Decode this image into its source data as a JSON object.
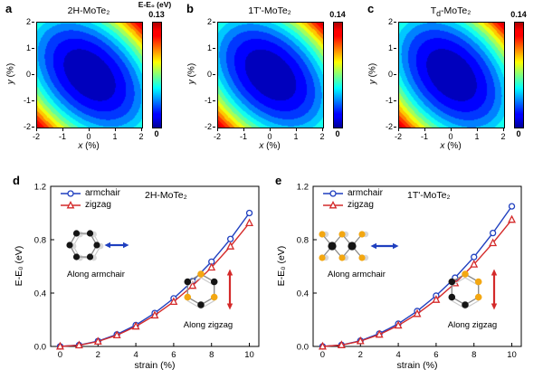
{
  "figure": {
    "background": "#ffffff",
    "accent_blue": "#1f3fbf",
    "accent_red": "#d42a2a",
    "atom_orange": "#f3a712"
  },
  "panels": {
    "a": {
      "label": "a",
      "title": "2H-MoTe₂",
      "colorbar_title": "E-E₀ (eV)",
      "colorbar_max": "0.13",
      "colorbar_min": "0",
      "xlabel_var": "x",
      "xlabel_unit": " (%)",
      "ylabel_var": "y",
      "ylabel_unit": " (%)"
    },
    "b": {
      "label": "b",
      "title": "1T'-MoTe₂",
      "colorbar_max": "0.14",
      "colorbar_min": "0",
      "xlabel_var": "x",
      "xlabel_unit": " (%)",
      "ylabel_var": "y",
      "ylabel_unit": " (%)"
    },
    "c": {
      "label": "c",
      "title_pre": "T",
      "title_sub": "d",
      "title_post": "-MoTe₂",
      "colorbar_max": "0.14",
      "colorbar_min": "0",
      "xlabel_var": "x",
      "xlabel_unit": " (%)",
      "ylabel_var": "y",
      "ylabel_unit": " (%)"
    },
    "d": {
      "label": "d",
      "title": "2H-MoTe₂",
      "xlabel": "strain (%)",
      "ylabel": "E-E₀ (eV)",
      "inset_armchair_label": "Along armchair",
      "inset_zigzag_label": "Along zigzag"
    },
    "e": {
      "label": "e",
      "title": "1T'-MoTe₂",
      "xlabel": "strain (%)",
      "ylabel": "E-E₀ (eV)",
      "inset_armchair_label": "Along armchair",
      "inset_zigzag_label": "Along zigzag"
    }
  },
  "chart_data": [
    {
      "id": "a",
      "type": "heatmap",
      "title": "2H-MoTe₂",
      "xlabel": "x (%)",
      "ylabel": "y (%)",
      "xlim": [
        -2,
        2
      ],
      "ylim": [
        -2,
        2
      ],
      "zlim": [
        0,
        0.13
      ],
      "xticks": [
        -2,
        -1,
        0,
        1,
        2
      ],
      "yticks": [
        -2,
        -1,
        0,
        1,
        2
      ],
      "levels": 14,
      "colormap": "jet",
      "energy_model": {
        "form": "E(x,y)=cxx*x^2+cyy*y^2+cxy*x*y",
        "cxx": 0.0115,
        "cyy": 0.0115,
        "cxy": 0.0095
      },
      "colorbar": {
        "label": "E-E₀ (eV)",
        "min": 0,
        "max": 0.13,
        "position": "right"
      }
    },
    {
      "id": "b",
      "type": "heatmap",
      "title": "1T'-MoTe₂",
      "xlabel": "x (%)",
      "ylabel": "y (%)",
      "xlim": [
        -2,
        2
      ],
      "ylim": [
        -2,
        2
      ],
      "zlim": [
        0,
        0.14
      ],
      "xticks": [
        -2,
        -1,
        0,
        1,
        2
      ],
      "yticks": [
        -2,
        -1,
        0,
        1,
        2
      ],
      "levels": 14,
      "colormap": "jet",
      "energy_model": {
        "form": "E(x,y)=cxx*x^2+cyy*y^2+cxy*x*y",
        "cxx": 0.0125,
        "cyy": 0.0125,
        "cxy": 0.01
      },
      "colorbar": {
        "min": 0,
        "max": 0.14,
        "position": "right"
      }
    },
    {
      "id": "c",
      "type": "heatmap",
      "title": "Td-MoTe₂",
      "xlabel": "x (%)",
      "ylabel": "y (%)",
      "xlim": [
        -2,
        2
      ],
      "ylim": [
        -2,
        2
      ],
      "zlim": [
        0,
        0.14
      ],
      "xticks": [
        -2,
        -1,
        0,
        1,
        2
      ],
      "yticks": [
        -2,
        -1,
        0,
        1,
        2
      ],
      "levels": 14,
      "colormap": "jet",
      "energy_model": {
        "form": "E(x,y)=cxx*x^2+cyy*y^2+cxy*x*y",
        "cxx": 0.013,
        "cyy": 0.012,
        "cxy": 0.01
      },
      "colorbar": {
        "min": 0,
        "max": 0.14,
        "position": "right"
      }
    },
    {
      "id": "d",
      "type": "line",
      "title": "2H-MoTe₂",
      "xlabel": "strain (%)",
      "ylabel": "E-E₀ (eV)",
      "xlim": [
        -0.5,
        10.5
      ],
      "ylim": [
        0,
        1.2
      ],
      "xticks": [
        0,
        2,
        4,
        6,
        8,
        10
      ],
      "yticks": [
        0,
        0.4,
        0.8,
        1.2
      ],
      "ytick_labels": [
        "0.0",
        "0.4",
        "0.8",
        "1.2"
      ],
      "legend_position": "top-left",
      "grid": false,
      "x": [
        0,
        1,
        2,
        3,
        4,
        5,
        6,
        7,
        8,
        9,
        10
      ],
      "series": [
        {
          "name": "armchair",
          "marker": "circle",
          "color": "#1f3fbf",
          "values": [
            0,
            0.01,
            0.04,
            0.09,
            0.16,
            0.25,
            0.36,
            0.49,
            0.635,
            0.805,
            1.0
          ]
        },
        {
          "name": "zigzag",
          "marker": "triangle",
          "color": "#d42a2a",
          "values": [
            0,
            0.009,
            0.037,
            0.084,
            0.15,
            0.233,
            0.335,
            0.455,
            0.592,
            0.75,
            0.925
          ]
        }
      ]
    },
    {
      "id": "e",
      "type": "line",
      "title": "1T'-MoTe₂",
      "xlabel": "strain (%)",
      "ylabel": "E-E₀ (eV)",
      "xlim": [
        -0.5,
        10.5
      ],
      "ylim": [
        0,
        1.2
      ],
      "xticks": [
        0,
        2,
        4,
        6,
        8,
        10
      ],
      "yticks": [
        0,
        0.4,
        0.8,
        1.2
      ],
      "ytick_labels": [
        "0.0",
        "0.4",
        "0.8",
        "1.2"
      ],
      "legend_position": "top-left",
      "grid": false,
      "x": [
        0,
        1,
        2,
        3,
        4,
        5,
        6,
        7,
        8,
        9,
        10
      ],
      "series": [
        {
          "name": "armchair",
          "marker": "circle",
          "color": "#1f3fbf",
          "values": [
            0,
            0.011,
            0.043,
            0.096,
            0.17,
            0.265,
            0.38,
            0.515,
            0.67,
            0.85,
            1.05
          ]
        },
        {
          "name": "zigzag",
          "marker": "triangle",
          "color": "#d42a2a",
          "values": [
            0,
            0.01,
            0.04,
            0.089,
            0.157,
            0.244,
            0.35,
            0.474,
            0.615,
            0.775,
            0.95
          ]
        }
      ]
    }
  ]
}
